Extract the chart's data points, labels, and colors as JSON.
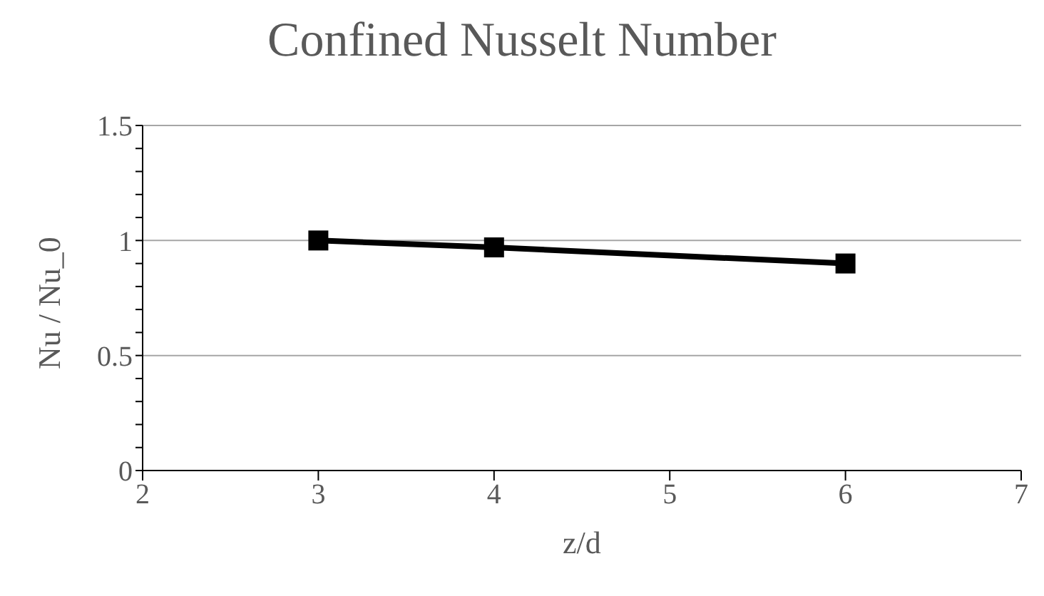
{
  "chart_data": {
    "type": "line",
    "title": "Confined Nusselt Number",
    "xlabel": "z/d",
    "ylabel": "Nu / Nu_0",
    "x": [
      3,
      4,
      6
    ],
    "series": [
      {
        "color": "#000000",
        "values": [
          1.0,
          0.97,
          0.9
        ]
      }
    ],
    "xlim": [
      2,
      7
    ],
    "xticks": [
      2,
      3,
      4,
      5,
      6,
      7
    ],
    "ylim": [
      0,
      1.5
    ],
    "yticks": [
      0,
      {
        "value": 0.1,
        "label": null
      },
      {
        "value": 0.2,
        "label": null
      },
      {
        "value": 0.3,
        "label": null
      },
      {
        "value": 0.4,
        "label": null
      },
      0.5,
      {
        "value": 0.6,
        "label": null
      },
      {
        "value": 0.7,
        "label": null
      },
      {
        "value": 0.8,
        "label": null
      },
      {
        "value": 0.9,
        "label": null
      },
      1,
      {
        "value": 1.1,
        "label": null
      },
      {
        "value": 1.2,
        "label": null
      },
      {
        "value": 1.3,
        "label": null
      },
      {
        "value": 1.4,
        "label": null
      },
      1.5
    ],
    "grid": "y",
    "marker": "square",
    "line_style": "solid",
    "legend": false
  }
}
